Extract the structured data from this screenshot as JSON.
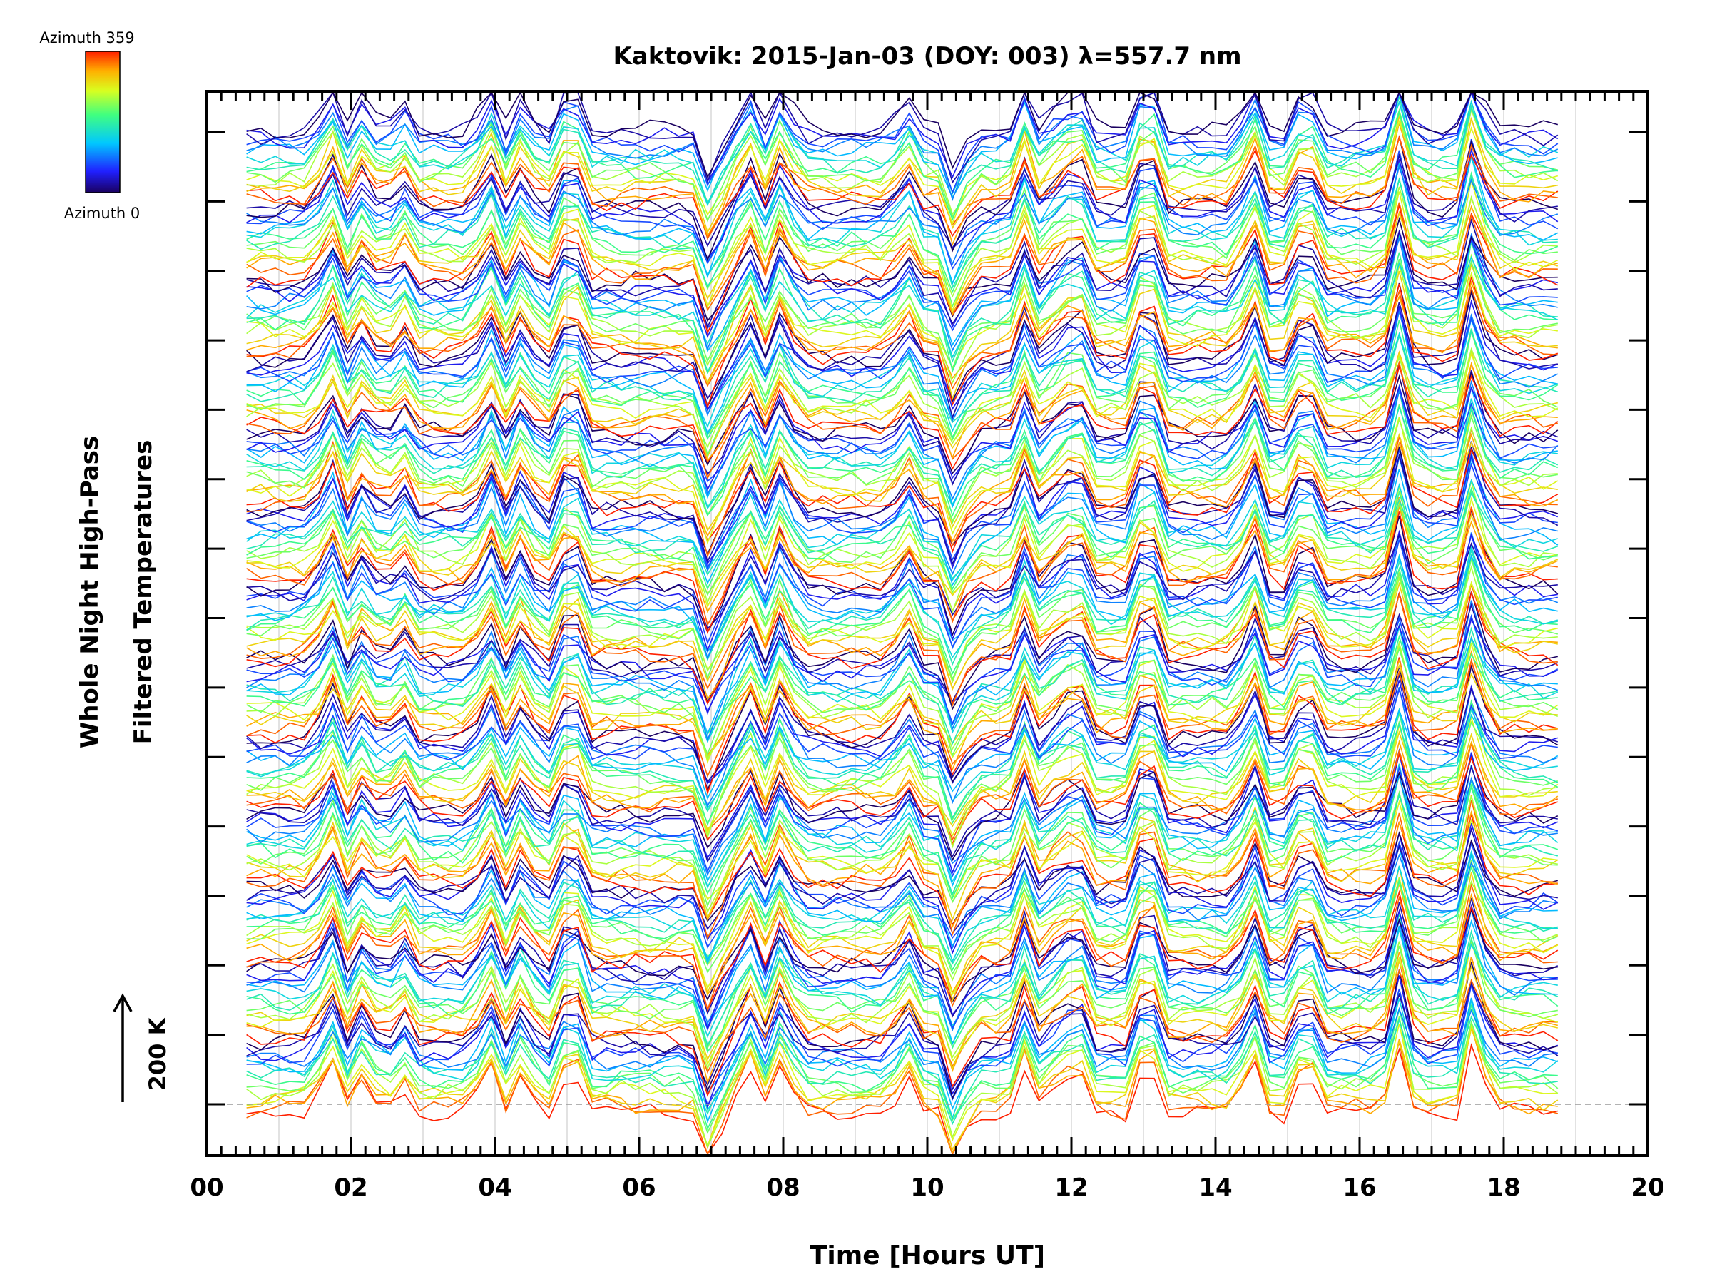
{
  "chart_data": {
    "type": "line",
    "title": "Kaktovik: 2015-Jan-03 (DOY: 003) λ=557.7 nm",
    "xlabel": "Time [Hours UT]",
    "ylabel_line1": "Whole Night High-Pass",
    "ylabel_line2": "Filtered Temperatures",
    "scale_label": "200 K",
    "xlim": [
      0,
      20
    ],
    "xticks": [
      "00",
      "02",
      "04",
      "06",
      "08",
      "10",
      "12",
      "14",
      "16",
      "18",
      "20"
    ],
    "colorbar": {
      "top_label": "Azimuth  359",
      "bottom_label": "Azimuth  0",
      "min": 0,
      "max": 359
    },
    "series_note": "Stacked high-pass filtered temperature traces, one per azimuth (0-359), grouped in 4 bands plus base band, each offset vertically",
    "time_start": 0.55,
    "time_end": 18.75,
    "time_step": 0.2,
    "num_groups": 13,
    "traces_per_group": 16,
    "shared_peaks": [
      {
        "t": 1.7,
        "amp": 1.0
      },
      {
        "t": 2.2,
        "amp": 0.7
      },
      {
        "t": 2.7,
        "amp": 0.6
      },
      {
        "t": 3.9,
        "amp": 0.9
      },
      {
        "t": 4.4,
        "amp": 0.8
      },
      {
        "t": 5.05,
        "amp": 1.2
      },
      {
        "t": 7.0,
        "amp": -1.0
      },
      {
        "t": 7.5,
        "amp": 0.9
      },
      {
        "t": 8.0,
        "amp": 1.0
      },
      {
        "t": 9.7,
        "amp": 0.7
      },
      {
        "t": 10.4,
        "amp": -1.0
      },
      {
        "t": 11.35,
        "amp": 0.9
      },
      {
        "t": 11.85,
        "amp": 0.7
      },
      {
        "t": 12.1,
        "amp": 0.8
      },
      {
        "t": 13.05,
        "amp": 1.4
      },
      {
        "t": 14.5,
        "amp": 1.1
      },
      {
        "t": 15.25,
        "amp": 1.1
      },
      {
        "t": 16.55,
        "amp": 1.3
      },
      {
        "t": 17.6,
        "amp": 1.5
      }
    ]
  }
}
